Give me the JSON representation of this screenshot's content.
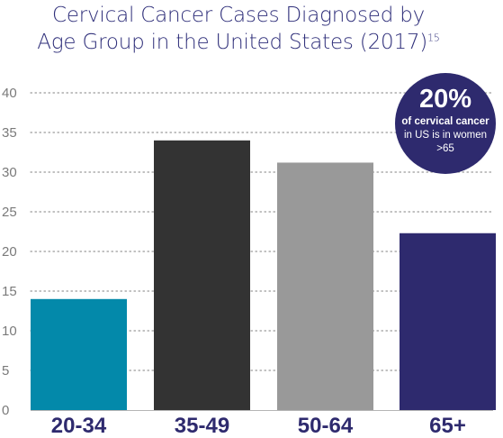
{
  "title": {
    "line1": "Cervical Cancer Cases Diagnosed by",
    "line2": "Age Group in the United States (2017)",
    "ref": "15"
  },
  "callout": {
    "percent": "20%",
    "line1": "of cervical cancer",
    "line2": "in US is in women",
    "line3": ">65"
  },
  "chart_data": {
    "type": "bar",
    "categories": [
      "20-34",
      "35-49",
      "50-64",
      "65+"
    ],
    "values": [
      14,
      34,
      31.2,
      22.3
    ],
    "colors": [
      "#0389aa",
      "#333333",
      "#999999",
      "#2e2a6e"
    ],
    "ylim": [
      0,
      40
    ],
    "yticks": [
      0,
      5,
      10,
      15,
      20,
      25,
      30,
      35,
      40
    ],
    "grid": true
  }
}
